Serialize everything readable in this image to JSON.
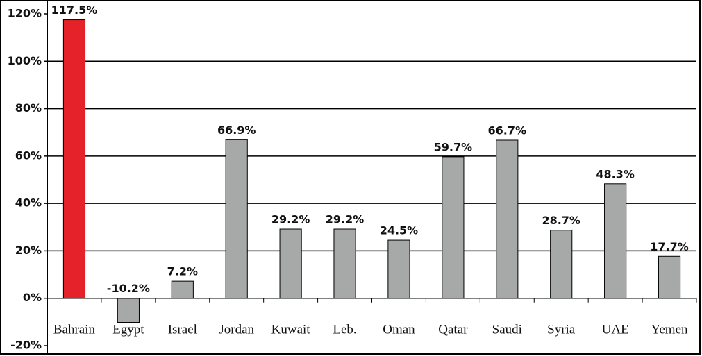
{
  "chart_data": {
    "type": "bar",
    "categories": [
      "Bahrain",
      "Egypt",
      "Israel",
      "Jordan",
      "Kuwait",
      "Leb.",
      "Oman",
      "Qatar",
      "Saudi",
      "Syria",
      "UAE",
      "Yemen"
    ],
    "values": [
      117.5,
      -10.2,
      7.2,
      66.9,
      29.2,
      29.2,
      24.5,
      59.7,
      66.7,
      28.7,
      48.3,
      17.7
    ],
    "value_labels": [
      "117.5%",
      "-10.2%",
      "7.2%",
      "66.9%",
      "29.2%",
      "29.2%",
      "24.5%",
      "59.7%",
      "66.7%",
      "28.7%",
      "48.3%",
      "17.7%"
    ],
    "colors": [
      "#e52129",
      "#a7a9a9",
      "#a7a9a9",
      "#a7a9a9",
      "#a7a9a9",
      "#a7a9a9",
      "#a7a9a9",
      "#a7a9a9",
      "#a7a9a9",
      "#a7a9a9",
      "#a7a9a9",
      "#a7a9a9"
    ],
    "ylim": [
      -20,
      120
    ],
    "yticks": [
      {
        "value": -20,
        "label": "-20%"
      },
      {
        "value": 0,
        "label": "0%"
      },
      {
        "value": 20,
        "label": "20%"
      },
      {
        "value": 40,
        "label": "40%"
      },
      {
        "value": 60,
        "label": "60%"
      },
      {
        "value": 80,
        "label": "80%"
      },
      {
        "value": 100,
        "label": "100%"
      },
      {
        "value": 120,
        "label": "120%"
      }
    ],
    "grid": true
  }
}
